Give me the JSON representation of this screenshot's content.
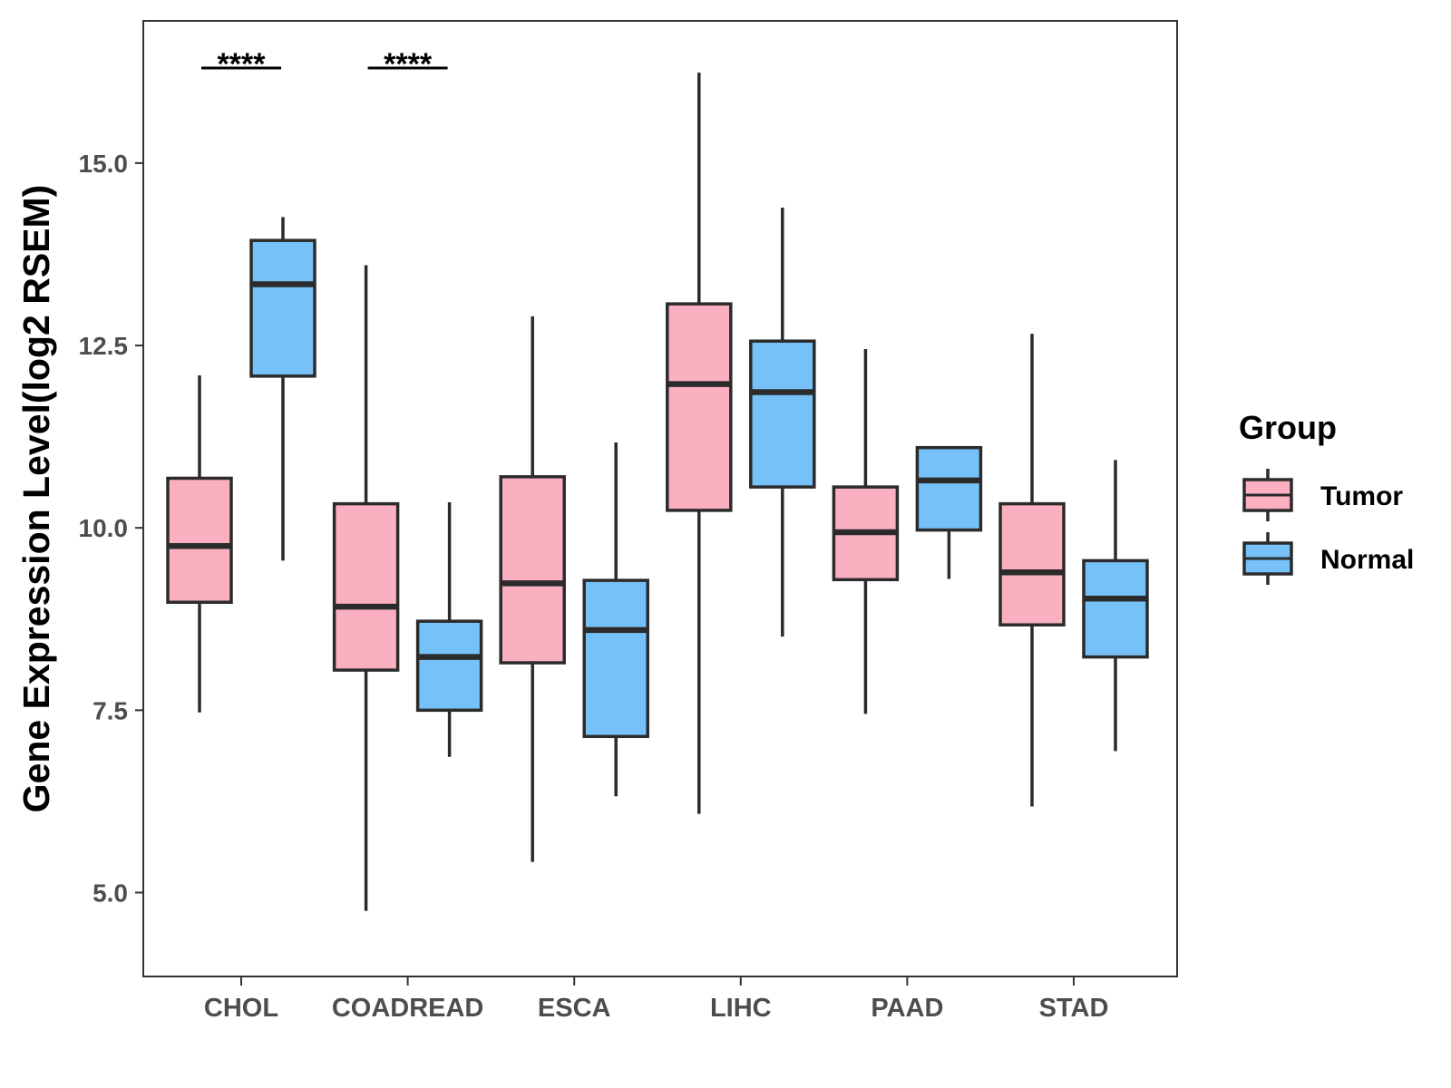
{
  "chart_data": {
    "type": "boxplot",
    "title": "",
    "xlabel": "",
    "ylabel": "Gene Expression Level(log2 RSEM)",
    "ylim": [
      3.85,
      16.95
    ],
    "yticks": [
      5.0,
      7.5,
      10.0,
      12.5,
      15.0
    ],
    "ytick_labels": [
      "5.0",
      "7.5",
      "10.0",
      "12.5",
      "15.0"
    ],
    "categories": [
      "CHOL",
      "COADREAD",
      "ESCA",
      "LIHC",
      "PAAD",
      "STAD"
    ],
    "legend": {
      "title": "Group",
      "position": "right",
      "entries": [
        {
          "name": "Tumor",
          "color": "#FBB0C1"
        },
        {
          "name": "Normal",
          "color": "#76C1F8"
        }
      ]
    },
    "series": [
      {
        "name": "Tumor",
        "color": "#FBB0C1",
        "boxes": [
          {
            "min": 7.47,
            "q1": 8.98,
            "median": 9.75,
            "q3": 10.68,
            "max": 12.09
          },
          {
            "min": 4.75,
            "q1": 8.05,
            "median": 8.92,
            "q3": 10.33,
            "max": 13.6
          },
          {
            "min": 5.42,
            "q1": 8.15,
            "median": 9.24,
            "q3": 10.7,
            "max": 12.9
          },
          {
            "min": 6.08,
            "q1": 10.24,
            "median": 11.97,
            "q3": 13.07,
            "max": 16.24
          },
          {
            "min": 7.45,
            "q1": 9.29,
            "median": 9.94,
            "q3": 10.56,
            "max": 12.45
          },
          {
            "min": 6.18,
            "q1": 8.67,
            "median": 9.39,
            "q3": 10.33,
            "max": 12.66
          }
        ]
      },
      {
        "name": "Normal",
        "color": "#76C1F8",
        "boxes": [
          {
            "min": 9.55,
            "q1": 12.08,
            "median": 13.34,
            "q3": 13.94,
            "max": 14.26
          },
          {
            "min": 6.86,
            "q1": 7.5,
            "median": 8.23,
            "q3": 8.72,
            "max": 10.35
          },
          {
            "min": 6.32,
            "q1": 7.14,
            "median": 8.6,
            "q3": 9.28,
            "max": 11.17
          },
          {
            "min": 8.51,
            "q1": 10.56,
            "median": 11.86,
            "q3": 12.56,
            "max": 14.39
          },
          {
            "min": 9.3,
            "q1": 9.97,
            "median": 10.65,
            "q3": 11.1,
            "max": 11.1
          },
          {
            "min": 6.94,
            "q1": 8.23,
            "median": 9.03,
            "q3": 9.55,
            "max": 10.93
          }
        ]
      }
    ],
    "annotations": [
      {
        "category": "CHOL",
        "text": "****"
      },
      {
        "category": "COADREAD",
        "text": "****"
      }
    ]
  }
}
